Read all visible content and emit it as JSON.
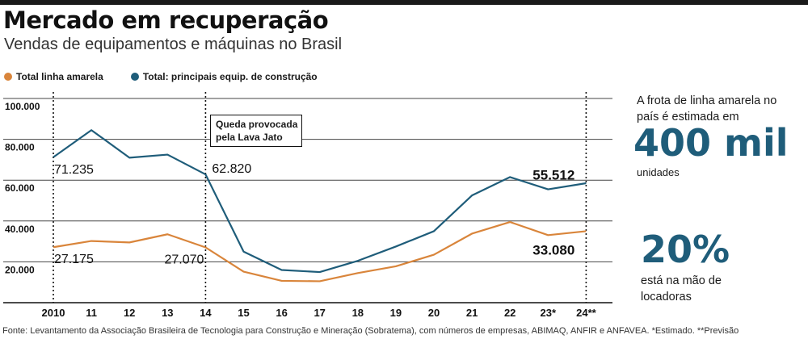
{
  "title": "Mercado em recuperação",
  "subtitle": "Vendas de equipamentos e máquinas no Brasil",
  "source": "Fonte: Levantamento da Associação Brasileira de Tecnologia para Construção e Mineração (Sobratema), com números de empresas, ABIMAQ, ANFIR e ANFAVEA. *Estimado. **Previsão",
  "colors": {
    "blue": "#1f5d7a",
    "orange": "#d9853b"
  },
  "sidebar": {
    "frota_text": "A frota de linha amarela no país é estimada em",
    "frota_value": "400 mil",
    "frota_unit": "unidades",
    "pct_value": "20%",
    "pct_text": "está na mão de locadoras"
  },
  "chart_data": {
    "type": "line",
    "categories": [
      "2010",
      "11",
      "12",
      "13",
      "14",
      "15",
      "16",
      "17",
      "18",
      "19",
      "20",
      "21",
      "22",
      "23*",
      "24**"
    ],
    "series": [
      {
        "name": "Total linha amarela",
        "color": "#d9853b",
        "values": [
          27175,
          30200,
          29500,
          33500,
          27070,
          15200,
          10700,
          10500,
          14500,
          17800,
          23500,
          33800,
          39500,
          33080,
          35000
        ]
      },
      {
        "name": "Total: principais equip. de construção",
        "color": "#1f5d7a",
        "values": [
          71235,
          84500,
          71000,
          72500,
          62820,
          25000,
          16000,
          15000,
          20500,
          27500,
          35000,
          52500,
          61500,
          55512,
          58500
        ]
      }
    ],
    "yticks": [
      "100.000",
      "80.000",
      "60.000",
      "40.000",
      "20.000"
    ],
    "ytick_values": [
      100000,
      80000,
      60000,
      40000,
      20000
    ],
    "ylim": [
      0,
      100000
    ],
    "annotation": {
      "line1": "Queda provocada",
      "line2": "pela Lava Jato",
      "category": "14"
    },
    "data_labels": [
      {
        "text": "71.235",
        "series": 1,
        "index": 0
      },
      {
        "text": "62.820",
        "series": 1,
        "index": 4
      },
      {
        "text": "27.175",
        "series": 0,
        "index": 0
      },
      {
        "text": "27.070",
        "series": 0,
        "index": 4
      },
      {
        "text": "55.512",
        "series": 1,
        "index": 13
      },
      {
        "text": "33.080",
        "series": 0,
        "index": 13
      }
    ]
  }
}
